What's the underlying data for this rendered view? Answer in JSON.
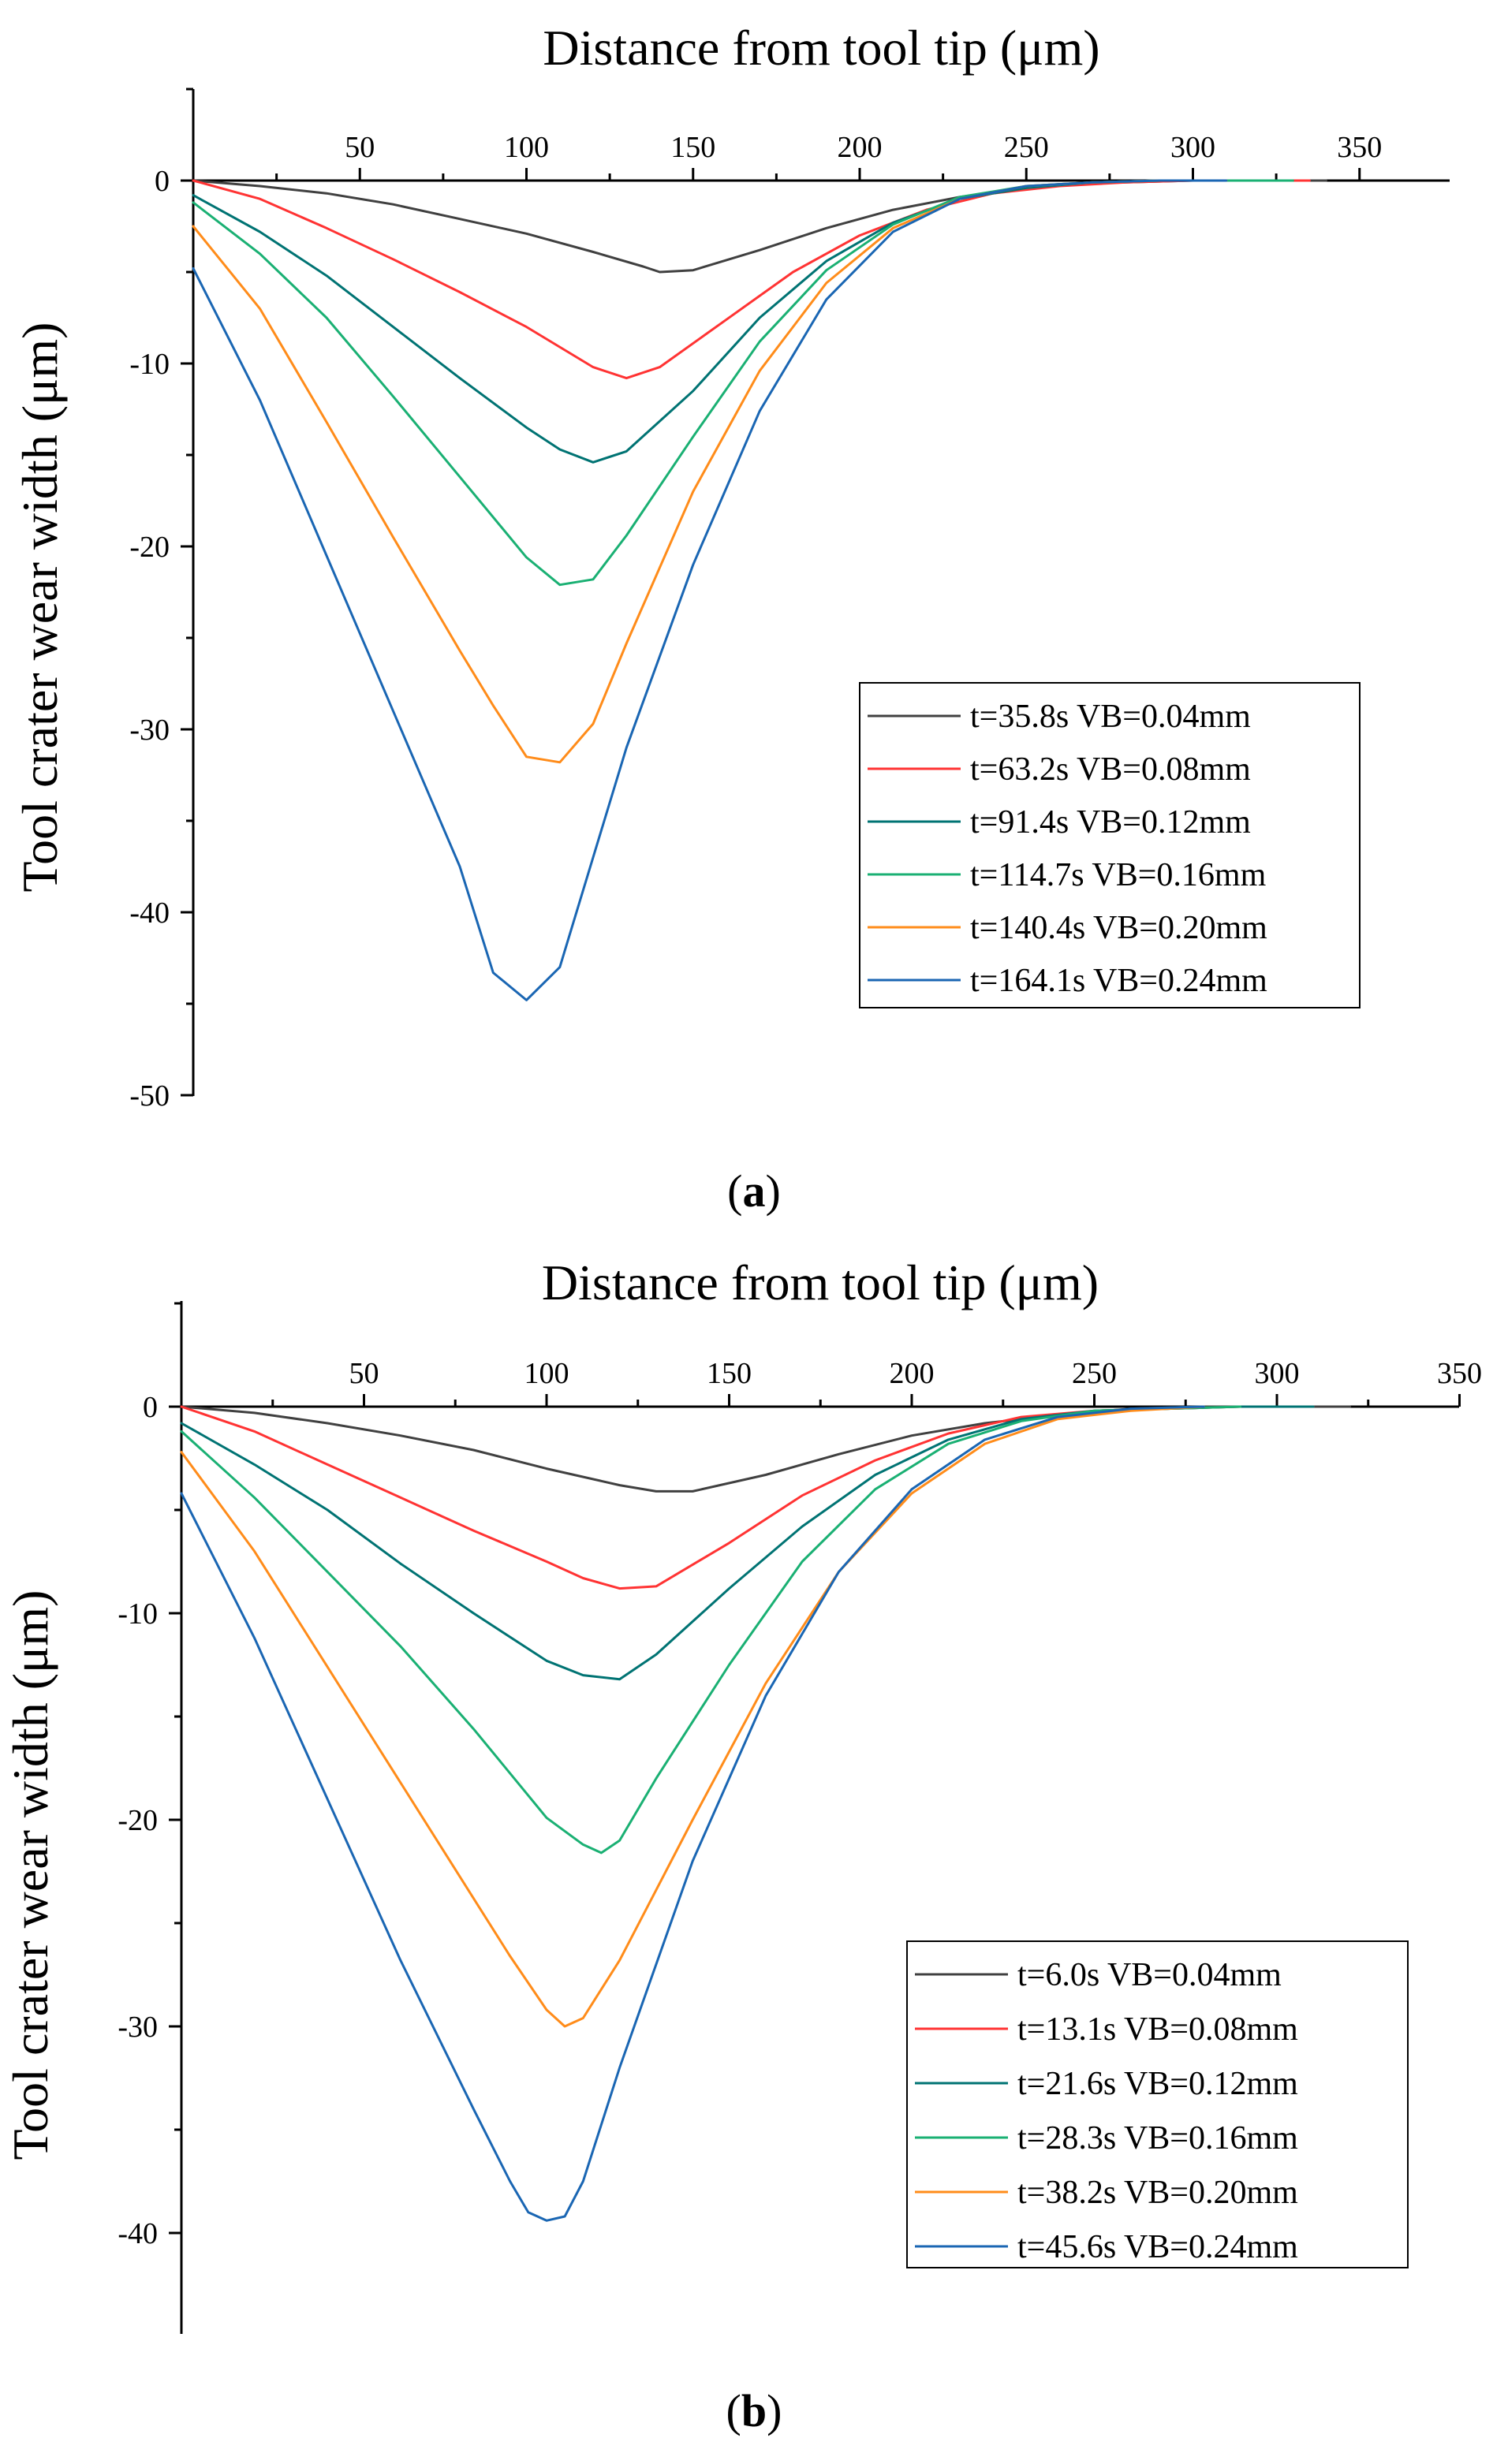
{
  "chart_data": [
    {
      "type": "line",
      "panel_label": "a",
      "title": "",
      "xlabel": "Distance from tool tip (μm)",
      "ylabel": "Tool crater wear width (μm)",
      "xlim": [
        0,
        375
      ],
      "ylim": [
        -50,
        5
      ],
      "x_ticks": [
        50,
        100,
        150,
        200,
        250,
        300,
        350
      ],
      "y_ticks": [
        0,
        -10,
        -20,
        -30,
        -40,
        -50
      ],
      "legend_position": "middle-right",
      "series": [
        {
          "name": "t=35.8s VB=0.04mm",
          "color": "#404040",
          "x": [
            0,
            20,
            40,
            60,
            80,
            100,
            120,
            135,
            140,
            150,
            170,
            190,
            210,
            230,
            250,
            260,
            280,
            300,
            320,
            340
          ],
          "y": [
            0,
            -0.3,
            -0.7,
            -1.3,
            -2.1,
            -2.9,
            -3.9,
            -4.7,
            -5.0,
            -4.9,
            -3.8,
            -2.6,
            -1.6,
            -0.9,
            -0.4,
            -0.2,
            -0.1,
            0,
            0,
            0
          ]
        },
        {
          "name": "t=63.2s VB=0.08mm",
          "color": "#ff3333",
          "x": [
            0,
            20,
            40,
            60,
            80,
            100,
            120,
            130,
            140,
            160,
            180,
            200,
            220,
            240,
            260,
            280,
            300,
            320,
            335
          ],
          "y": [
            0,
            -1.0,
            -2.6,
            -4.3,
            -6.1,
            -8.0,
            -10.2,
            -10.8,
            -10.2,
            -7.6,
            -5.0,
            -3.0,
            -1.6,
            -0.7,
            -0.3,
            -0.1,
            0,
            0,
            0
          ]
        },
        {
          "name": "t=91.4s VB=0.12mm",
          "color": "#007373",
          "x": [
            0,
            20,
            40,
            60,
            80,
            100,
            110,
            120,
            130,
            150,
            170,
            190,
            210,
            230,
            250,
            270,
            290,
            310,
            330
          ],
          "y": [
            -0.8,
            -2.8,
            -5.2,
            -8.0,
            -10.8,
            -13.5,
            -14.7,
            -15.4,
            -14.8,
            -11.5,
            -7.5,
            -4.4,
            -2.3,
            -1.0,
            -0.4,
            -0.1,
            0,
            0,
            0
          ]
        },
        {
          "name": "t=114.7s VB=0.16mm",
          "color": "#1ab073",
          "x": [
            0,
            20,
            40,
            60,
            80,
            100,
            110,
            120,
            130,
            150,
            170,
            190,
            210,
            230,
            250,
            270,
            290,
            310,
            330
          ],
          "y": [
            -1.2,
            -4.0,
            -7.5,
            -11.8,
            -16.2,
            -20.6,
            -22.1,
            -21.8,
            -19.4,
            -14.0,
            -8.8,
            -4.9,
            -2.4,
            -0.9,
            -0.3,
            -0.1,
            0,
            0,
            0
          ]
        },
        {
          "name": "t=140.4s VB=0.20mm",
          "color": "#ff8c1a",
          "x": [
            0,
            20,
            40,
            60,
            80,
            90,
            100,
            110,
            120,
            130,
            150,
            170,
            190,
            210,
            230,
            250,
            270,
            290,
            310
          ],
          "y": [
            -2.5,
            -7.0,
            -13.2,
            -19.5,
            -25.7,
            -28.7,
            -31.5,
            -31.8,
            -29.7,
            -25.3,
            -17.0,
            -10.4,
            -5.6,
            -2.6,
            -1.0,
            -0.3,
            -0.1,
            0,
            0
          ]
        },
        {
          "name": "t=164.1s VB=0.24mm",
          "color": "#1a66b3",
          "x": [
            0,
            20,
            40,
            60,
            80,
            90,
            100,
            110,
            120,
            130,
            150,
            170,
            190,
            210,
            230,
            250,
            270,
            290,
            310
          ],
          "y": [
            -4.8,
            -12.0,
            -20.5,
            -29.0,
            -37.5,
            -43.3,
            -44.8,
            -43.0,
            -37.0,
            -31.0,
            -21.0,
            -12.6,
            -6.5,
            -2.8,
            -1.0,
            -0.3,
            -0.1,
            0,
            0
          ]
        }
      ]
    },
    {
      "type": "line",
      "panel_label": "b",
      "title": "",
      "xlabel": "Distance from tool tip (μm)",
      "ylabel": "Tool crater wear width (μm)",
      "xlim": [
        0,
        350
      ],
      "ylim": [
        -45,
        5
      ],
      "x_ticks": [
        50,
        100,
        150,
        200,
        250,
        300,
        350
      ],
      "y_ticks": [
        0,
        -10,
        -20,
        -30,
        -40
      ],
      "legend_position": "bottom-right",
      "series": [
        {
          "name": "t=6.0s VB=0.04mm",
          "color": "#404040",
          "x": [
            0,
            20,
            40,
            60,
            80,
            100,
            120,
            130,
            140,
            160,
            180,
            200,
            220,
            240,
            260,
            280,
            300,
            320
          ],
          "y": [
            0,
            -0.3,
            -0.8,
            -1.4,
            -2.1,
            -3.0,
            -3.8,
            -4.1,
            -4.1,
            -3.3,
            -2.3,
            -1.4,
            -0.8,
            -0.4,
            -0.1,
            0,
            0,
            0
          ]
        },
        {
          "name": "t=13.1s VB=0.08mm",
          "color": "#ff3333",
          "x": [
            0,
            20,
            40,
            60,
            80,
            100,
            110,
            120,
            130,
            150,
            170,
            190,
            210,
            230,
            250,
            270,
            290,
            310
          ],
          "y": [
            0,
            -1.2,
            -2.8,
            -4.4,
            -6.0,
            -7.5,
            -8.3,
            -8.8,
            -8.7,
            -6.6,
            -4.3,
            -2.6,
            -1.3,
            -0.5,
            -0.2,
            -0.1,
            0,
            0
          ]
        },
        {
          "name": "t=21.6s VB=0.12mm",
          "color": "#007373",
          "x": [
            0,
            20,
            40,
            60,
            80,
            100,
            110,
            120,
            130,
            150,
            170,
            190,
            210,
            230,
            250,
            270,
            290,
            310
          ],
          "y": [
            -0.8,
            -2.8,
            -5.0,
            -7.6,
            -10.0,
            -12.3,
            -13.0,
            -13.2,
            -12.0,
            -8.8,
            -5.8,
            -3.3,
            -1.6,
            -0.6,
            -0.2,
            -0.1,
            0,
            0
          ]
        },
        {
          "name": "t=28.3s VB=0.16mm",
          "color": "#1ab073",
          "x": [
            0,
            20,
            40,
            60,
            80,
            100,
            110,
            115,
            120,
            130,
            150,
            170,
            190,
            210,
            230,
            250,
            270,
            290
          ],
          "y": [
            -1.2,
            -4.4,
            -8.0,
            -11.6,
            -15.6,
            -19.9,
            -21.2,
            -21.6,
            -21.0,
            -18.0,
            -12.5,
            -7.5,
            -4.0,
            -1.8,
            -0.7,
            -0.2,
            -0.1,
            0
          ]
        },
        {
          "name": "t=38.2s VB=0.20mm",
          "color": "#ff8c1a",
          "x": [
            0,
            20,
            40,
            60,
            80,
            90,
            100,
            105,
            110,
            120,
            140,
            160,
            180,
            200,
            220,
            240,
            260,
            280
          ],
          "y": [
            -2.2,
            -7.0,
            -12.6,
            -18.2,
            -23.8,
            -26.6,
            -29.2,
            -30.0,
            -29.6,
            -26.8,
            -20.0,
            -13.4,
            -8.0,
            -4.2,
            -1.8,
            -0.6,
            -0.2,
            0
          ]
        },
        {
          "name": "t=45.6s VB=0.24mm",
          "color": "#1a66b3",
          "x": [
            0,
            20,
            40,
            60,
            80,
            90,
            95,
            100,
            105,
            110,
            120,
            140,
            160,
            180,
            200,
            220,
            240,
            260,
            280
          ],
          "y": [
            -4.2,
            -11.2,
            -19.0,
            -26.8,
            -34.0,
            -37.5,
            -39.0,
            -39.4,
            -39.2,
            -37.5,
            -32.0,
            -22.0,
            -14.0,
            -8.0,
            -4.0,
            -1.6,
            -0.5,
            -0.1,
            0
          ]
        }
      ]
    }
  ]
}
